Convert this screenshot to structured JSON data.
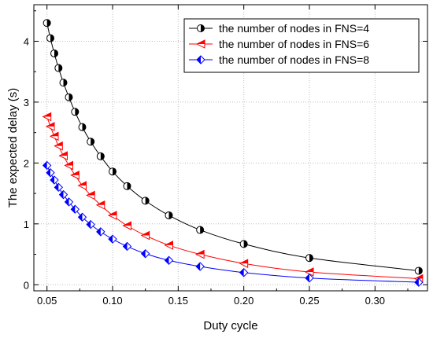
{
  "chart_data": {
    "type": "line",
    "xlabel": "Duty cycle",
    "ylabel": "The expected delay (s)",
    "xlim": [
      0.04,
      0.34
    ],
    "ylim": [
      -0.1,
      4.6
    ],
    "xticks": [
      0.05,
      0.1,
      0.15,
      0.2,
      0.25,
      0.3
    ],
    "xtick_labels": [
      "0.05",
      "0.10",
      "0.15",
      "0.20",
      "0.25",
      "0.30"
    ],
    "yticks": [
      0,
      1,
      2,
      3,
      4
    ],
    "ytick_labels": [
      "0",
      "1",
      "2",
      "3",
      "4"
    ],
    "grid": true,
    "legend_position": "top-right",
    "series": [
      {
        "name": "the number of nodes in FNS=4",
        "color": "#000000",
        "marker": "half-filled-circle",
        "x": [
          0.05,
          0.0526,
          0.0556,
          0.0588,
          0.0625,
          0.0667,
          0.0714,
          0.0769,
          0.0833,
          0.0909,
          0.1,
          0.1111,
          0.125,
          0.1429,
          0.1667,
          0.2,
          0.25,
          0.3333
        ],
        "y": [
          4.3,
          4.05,
          3.8,
          3.56,
          3.32,
          3.08,
          2.84,
          2.59,
          2.35,
          2.11,
          1.86,
          1.62,
          1.38,
          1.14,
          0.9,
          0.67,
          0.44,
          0.23
        ]
      },
      {
        "name": "the number of nodes in FNS=6",
        "color": "#ff0000",
        "marker": "half-filled-left-triangle",
        "x": [
          0.05,
          0.0526,
          0.0556,
          0.0588,
          0.0625,
          0.0667,
          0.0714,
          0.0769,
          0.0833,
          0.0909,
          0.1,
          0.1111,
          0.125,
          0.1429,
          0.1667,
          0.2,
          0.25,
          0.3333
        ],
        "y": [
          2.76,
          2.6,
          2.44,
          2.28,
          2.12,
          1.96,
          1.8,
          1.63,
          1.47,
          1.31,
          1.14,
          0.97,
          0.81,
          0.65,
          0.5,
          0.35,
          0.21,
          0.1
        ]
      },
      {
        "name": "the number of nodes in FNS=8",
        "color": "#0000ff",
        "marker": "half-filled-diamond",
        "x": [
          0.05,
          0.0526,
          0.0556,
          0.0588,
          0.0625,
          0.0667,
          0.0714,
          0.0769,
          0.0833,
          0.0909,
          0.1,
          0.1111,
          0.125,
          0.1429,
          0.1667,
          0.2,
          0.25,
          0.3333
        ],
        "y": [
          1.96,
          1.84,
          1.72,
          1.6,
          1.48,
          1.36,
          1.24,
          1.11,
          0.99,
          0.87,
          0.75,
          0.63,
          0.51,
          0.4,
          0.3,
          0.2,
          0.11,
          0.04
        ]
      }
    ]
  }
}
